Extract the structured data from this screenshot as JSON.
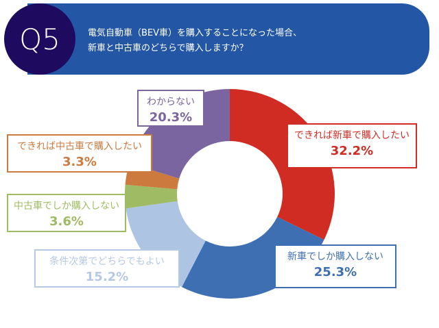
{
  "header": {
    "badge": "Q5",
    "question_line1": "電気自動車（BEV車）を購入することになった場合、",
    "question_line2": "新車と中古車のどちらで購入しますか？"
  },
  "chart_data": {
    "type": "pie",
    "donut": true,
    "categories": [
      "できれば新車で購入したい",
      "新車でしか購入しない",
      "条件次第でどちらでもよい",
      "中古車でしか購入しない",
      "できれば中古車で購入したい",
      "わからない"
    ],
    "values": [
      32.2,
      25.3,
      15.2,
      3.6,
      3.3,
      20.3
    ],
    "labels": [
      "32.2%",
      "25.3%",
      "15.2%",
      "3.6%",
      "3.3%",
      "20.3%"
    ],
    "colors": [
      "#d12c24",
      "#3f6fb3",
      "#adc4e2",
      "#9fbb63",
      "#cd7a3e",
      "#7a65a0"
    ],
    "label_colors": [
      "#d12c24",
      "#3f6fb3",
      "#b5c8e4",
      "#9fbb63",
      "#cd7a3e",
      "#7a65a0"
    ]
  }
}
